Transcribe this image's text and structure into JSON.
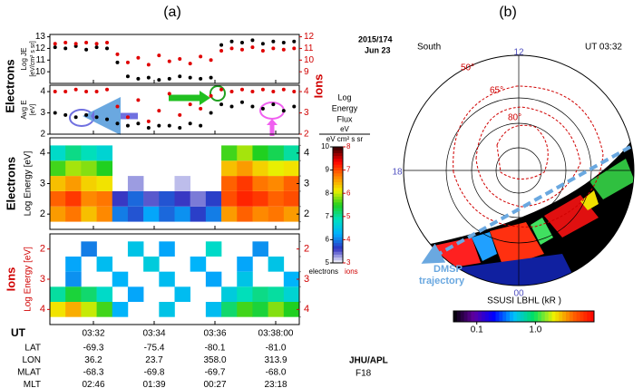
{
  "figure_a": {
    "label": "(a)",
    "date": "2015/174",
    "day": "Jun 23",
    "org": "JHU/APL",
    "sat": "F18",
    "ut_label": "UT",
    "xticks": [
      "03:32",
      "03:34",
      "03:36",
      "03:38:00"
    ],
    "ephemeris": [
      {
        "name": "LAT",
        "values": [
          "-69.3",
          "-75.4",
          "-80.1",
          "-81.0"
        ]
      },
      {
        "name": "LON",
        "values": [
          "36.2",
          "23.7",
          "358.0",
          "313.9"
        ]
      },
      {
        "name": "MLAT",
        "values": [
          "-68.3",
          "-69.8",
          "-69.7",
          "-68.0"
        ]
      },
      {
        "name": "MLT",
        "values": [
          "02:46",
          "01:39",
          "00:27",
          "23:18"
        ]
      }
    ]
  },
  "chart_data": [
    {
      "type": "scatter",
      "ylabel": "Log JE",
      "yunit": "[eV/cm² s sr]",
      "ylim": [
        9,
        13.2
      ],
      "yticks": [
        10,
        11,
        12,
        13
      ],
      "y2lim": [
        8,
        12.2
      ],
      "y2ticks": [
        9,
        10,
        11,
        12
      ],
      "series": [
        {
          "name": "Electrons",
          "color": "#000000",
          "values": [
            12.1,
            12.0,
            12.2,
            11.9,
            12.1,
            12.0,
            10.8,
            9.6,
            9.4,
            9.5,
            9.3,
            9.4,
            9.6,
            9.5,
            9.4,
            9.5,
            12.3,
            12.6,
            12.5,
            12.7,
            12.4,
            12.6,
            12.5,
            12.6
          ]
        },
        {
          "name": "Ions",
          "color": "#e00000",
          "axis": "y2",
          "values": [
            11.4,
            11.5,
            11.4,
            11.5,
            11.4,
            11.5,
            10.5,
            9.8,
            10.2,
            9.6,
            10.4,
            9.9,
            10.1,
            9.7,
            10.3,
            10.0,
            10.8,
            11.0,
            10.9,
            11.1,
            10.8,
            11.0,
            10.9,
            11.0
          ]
        }
      ]
    },
    {
      "type": "scatter",
      "ylabel": "Avg E",
      "yunit": "[eV]",
      "ylim": [
        2,
        4.3
      ],
      "yticks": [
        2,
        3,
        4
      ],
      "y2lim": [
        2,
        4.3
      ],
      "y2ticks": [
        2,
        3,
        4
      ],
      "series": [
        {
          "color": "#000000",
          "values": [
            3.0,
            2.9,
            2.8,
            2.9,
            2.8,
            2.7,
            2.5,
            2.4,
            2.5,
            2.3,
            2.4,
            2.4,
            2.3,
            2.5,
            2.4,
            3.0,
            3.4,
            3.3,
            3.5,
            3.3,
            3.2,
            3.4,
            3.1,
            3.3
          ]
        },
        {
          "color": "#e00000",
          "axis": "y2",
          "values": [
            4.0,
            4.0,
            4.1,
            4.0,
            4.0,
            4.1,
            3.3,
            2.8,
            3.6,
            2.6,
            3.1,
            3.9,
            2.9,
            3.4,
            3.2,
            3.8,
            4.1,
            4.0,
            4.1,
            4.0,
            4.1,
            4.0,
            4.1,
            4.0
          ]
        }
      ]
    },
    {
      "type": "heatmap",
      "group": "Electrons",
      "ylabel": "Log Energy [eV]",
      "ylim": [
        1.5,
        4.5
      ],
      "yticks": [
        2,
        3,
        4
      ],
      "bins": [
        1.75,
        2.25,
        2.75,
        3.25,
        3.75,
        4.25
      ],
      "clim": [
        5,
        10
      ],
      "values": [
        [
          8.6,
          8.8,
          8.4,
          8.7,
          6.0,
          5.8,
          6.2,
          5.9,
          6.1,
          5.7,
          6.0,
          8.6,
          8.9,
          8.7,
          8.8,
          8.6
        ],
        [
          8.9,
          9.1,
          8.7,
          8.8,
          5.6,
          5.9,
          5.5,
          5.8,
          5.6,
          5.4,
          5.7,
          9.0,
          9.2,
          9.1,
          8.9,
          9.0
        ],
        [
          8.4,
          8.6,
          8.3,
          8.2,
          null,
          5.3,
          null,
          null,
          5.2,
          null,
          null,
          8.9,
          9.1,
          8.8,
          8.7,
          8.9
        ],
        [
          7.6,
          7.9,
          7.8,
          7.5,
          null,
          null,
          null,
          null,
          null,
          null,
          null,
          8.4,
          8.6,
          8.3,
          8.1,
          8.2
        ],
        [
          6.8,
          7.1,
          6.9,
          6.7,
          null,
          null,
          null,
          null,
          null,
          null,
          null,
          7.6,
          7.9,
          7.5,
          7.3,
          7.0
        ]
      ]
    },
    {
      "type": "heatmap",
      "group": "Ions",
      "ylabel": "Log Energy [eV]",
      "reverse": true,
      "ylim": [
        1.5,
        4.5
      ],
      "yticks": [
        2,
        3,
        4
      ],
      "bins": [
        1.75,
        2.25,
        2.75,
        3.25,
        3.75,
        4.25
      ],
      "clim": [
        3,
        8
      ],
      "values": [
        [
          null,
          null,
          4.0,
          null,
          null,
          4.5,
          null,
          4.2,
          null,
          null,
          4.8,
          null,
          null,
          4.1,
          null,
          null
        ],
        [
          null,
          4.2,
          null,
          4.4,
          null,
          null,
          4.6,
          null,
          null,
          4.3,
          null,
          null,
          4.2,
          null,
          4.5,
          null
        ],
        [
          null,
          4.1,
          null,
          null,
          4.3,
          null,
          null,
          4.4,
          null,
          null,
          4.2,
          null,
          4.5,
          null,
          null,
          4.3
        ],
        [
          5.0,
          5.4,
          5.2,
          4.8,
          null,
          4.2,
          null,
          null,
          4.4,
          null,
          null,
          4.6,
          4.9,
          5.1,
          5.0,
          4.7
        ],
        [
          6.2,
          6.5,
          6.0,
          5.6,
          4.3,
          null,
          null,
          4.5,
          null,
          null,
          4.4,
          5.2,
          5.6,
          5.4,
          5.8,
          5.5
        ]
      ]
    },
    {
      "type": "colorbar",
      "title": [
        "Log",
        "Energy",
        "Flux"
      ],
      "unit_top": "eV",
      "unit_bottom": "eV cm² s sr",
      "ylim": [
        5,
        10
      ],
      "yticks": [
        5,
        6,
        7,
        8,
        9,
        10
      ],
      "y2lim": [
        3,
        8
      ],
      "y2ticks": [
        3,
        4,
        5,
        6,
        7,
        8
      ],
      "left_name": "electrons",
      "right_name": "ions",
      "colormap": [
        "#ffffff",
        "#3030c0",
        "#00b0ff",
        "#00e0c0",
        "#20d020",
        "#f0f000",
        "#ff8000",
        "#ff0000",
        "#300000"
      ]
    }
  ],
  "figure_b": {
    "label": "(b)",
    "hemisphere": "South",
    "time": "UT 03:32",
    "mlt": [
      "12",
      "18",
      "00"
    ],
    "lat": [
      "50°",
      "65°",
      "80°"
    ],
    "trajectory": [
      "DMSP",
      "trajectory"
    ],
    "colorbar": {
      "title": "SSUSI LBHL  (kR )",
      "log": true,
      "xlim": [
        0.04,
        10
      ],
      "xticks": [
        0.1,
        {
          "value": 1,
          "label": "1.0"
        }
      ],
      "colormap": [
        "#000000",
        "#6000a0",
        "#0000ff",
        "#00c0ff",
        "#00e060",
        "#f0f000",
        "#ff6000",
        "#ff0000"
      ]
    }
  }
}
